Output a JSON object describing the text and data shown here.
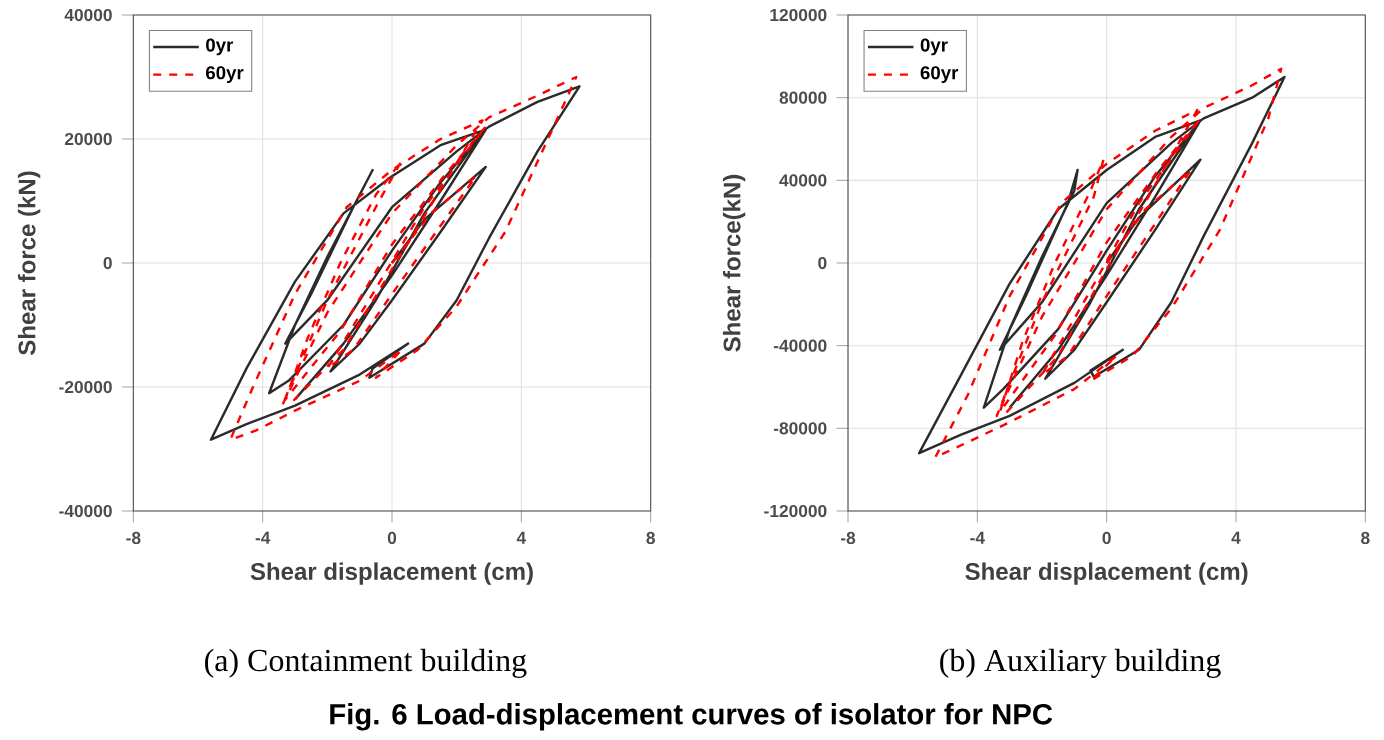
{
  "chart_data": [
    {
      "type": "line",
      "xlabel": "Shear displacement (cm)",
      "ylabel": "Shear force (kN)",
      "xlim": [
        -8,
        8
      ],
      "ylim": [
        -40000,
        40000
      ],
      "xticks": [
        -8,
        -4,
        0,
        4,
        8
      ],
      "yticks": [
        -40000,
        -20000,
        0,
        20000,
        40000
      ],
      "grid": true,
      "legend": "top left",
      "annotations": [
        "(a) Containment building",
        "Fig. 6 Load-displacement curves of isolator for NPC"
      ],
      "series": [
        {
          "name": "0yr",
          "color": "#2b2b2b",
          "line_style": "solid",
          "x": [
            0,
            1,
            2.9,
            1.5,
            0,
            -1,
            -1.9,
            -0.5,
            1,
            2.8,
            1.5,
            0,
            -1.5,
            -3.2,
            -3.8,
            -3,
            -2,
            -1,
            -0.6,
            -1.2,
            -2.5,
            -3.3,
            -2,
            0,
            2,
            3,
            4.5,
            5.8,
            4.5,
            3,
            2,
            1,
            -0.7,
            -0.6,
            0.5,
            -1,
            -3,
            -4.5,
            -5.6,
            -4.5,
            -3,
            -1.5,
            0,
            1.5,
            2.9,
            1.5,
            0,
            -1.5,
            -3
          ],
          "values": [
            0,
            7000,
            15500,
            5000,
            -6000,
            -13000,
            -17500,
            -6000,
            8000,
            21000,
            13000,
            2000,
            -10000,
            -19000,
            -21000,
            -10000,
            1000,
            11000,
            15000,
            9000,
            -5000,
            -13000,
            -6000,
            9000,
            18000,
            22000,
            26000,
            28500,
            18000,
            4000,
            -6000,
            -13000,
            -18500,
            -17000,
            -13000,
            -18000,
            -23000,
            -26000,
            -28500,
            -17000,
            -3000,
            8000,
            14000,
            19000,
            21500,
            10000,
            -2000,
            -13000,
            -22000
          ]
        },
        {
          "name": "60yr",
          "color": "#ff0000",
          "line_style": "dashed",
          "x": [
            0,
            1.2,
            2.6,
            1.5,
            0,
            -1.2,
            -2,
            -0.6,
            1,
            2.9,
            1.6,
            0,
            -1.6,
            -3.3,
            -2.6,
            -1.6,
            -0.5,
            0.3,
            -0.4,
            -2,
            -3.4,
            -2,
            0,
            2,
            3,
            4.5,
            5.7,
            5,
            3.5,
            2,
            0.8,
            -0.5,
            0.3,
            -1,
            -3,
            -4.2,
            -5,
            -4.3,
            -3,
            -1.4,
            0,
            1.5,
            2.8,
            1.4,
            0,
            -1.5,
            -3.2
          ],
          "values": [
            0,
            8000,
            14000,
            6000,
            -5000,
            -14000,
            -17000,
            -5000,
            9000,
            22000,
            14000,
            3000,
            -11000,
            -22000,
            -12000,
            0,
            11000,
            16500,
            10000,
            -6000,
            -23000,
            -8000,
            8000,
            19000,
            23500,
            27000,
            30000,
            22000,
            5000,
            -7000,
            -14000,
            -18500,
            -14000,
            -19000,
            -23800,
            -27000,
            -28500,
            -20000,
            -5000,
            9000,
            15000,
            20000,
            23000,
            11000,
            -1000,
            -14000,
            -23000
          ]
        }
      ]
    },
    {
      "type": "line",
      "xlabel": "Shear displacement (cm)",
      "ylabel": "Shear force(kN)",
      "xlim": [
        -8,
        8
      ],
      "ylim": [
        -120000,
        120000
      ],
      "xticks": [
        -8,
        -4,
        0,
        4,
        8
      ],
      "yticks": [
        -120000,
        -80000,
        -40000,
        0,
        40000,
        80000,
        120000
      ],
      "grid": true,
      "legend": "top left",
      "annotations": [
        "(b) Auxiliary building"
      ],
      "series": [
        {
          "name": "0yr",
          "color": "#2b2b2b",
          "line_style": "solid",
          "x": [
            0,
            1,
            2.9,
            1.5,
            0,
            -1,
            -1.9,
            -0.5,
            1,
            2.8,
            1.5,
            0,
            -1.5,
            -3.2,
            -3.8,
            -3,
            -2,
            -1,
            -0.9,
            -1.2,
            -2.5,
            -3.3,
            -2,
            0,
            2,
            3,
            4.5,
            5.5,
            4.5,
            3,
            2,
            1,
            -0.4,
            -0.5,
            0.5,
            -1,
            -3,
            -4.5,
            -5.8,
            -4.5,
            -3,
            -1.5,
            0,
            1.5,
            2.9,
            1.5,
            0,
            -1.5,
            -3
          ],
          "values": [
            0,
            22000,
            50000,
            16000,
            -19000,
            -42000,
            -56000,
            -19000,
            26000,
            67000,
            42000,
            6000,
            -32000,
            -61000,
            -70000,
            -32000,
            3000,
            35000,
            45000,
            29000,
            -16000,
            -42000,
            -19000,
            29000,
            58000,
            70000,
            80000,
            90000,
            58000,
            13000,
            -19000,
            -42000,
            -55000,
            -52000,
            -42000,
            -58000,
            -74000,
            -83000,
            -92000,
            -54000,
            -10000,
            26000,
            45000,
            61000,
            69000,
            32000,
            -6000,
            -42000,
            -70000
          ]
        },
        {
          "name": "60yr",
          "color": "#ff0000",
          "line_style": "dashed",
          "x": [
            0,
            1.2,
            2.6,
            1.5,
            0,
            -1.2,
            -2,
            -0.6,
            1,
            2.9,
            1.6,
            0,
            -1.6,
            -3.3,
            -2.6,
            -1.6,
            -0.5,
            -0.1,
            -0.4,
            -2,
            -3.4,
            -2,
            0,
            2,
            3,
            4.5,
            5.4,
            5,
            3.5,
            2,
            0.8,
            -0.5,
            0.3,
            -1,
            -3,
            -4.2,
            -5.3,
            -4.3,
            -3,
            -1.4,
            0,
            1.5,
            2.8,
            1.4,
            0,
            -1.5,
            -3.2
          ],
          "values": [
            0,
            26000,
            45000,
            19000,
            -16000,
            -45000,
            -54000,
            -16000,
            29000,
            70000,
            45000,
            10000,
            -35000,
            -72000,
            -38000,
            0,
            35000,
            50000,
            32000,
            -19000,
            -74000,
            -26000,
            26000,
            61000,
            75000,
            86000,
            94000,
            70000,
            16000,
            -22000,
            -45000,
            -57000,
            -45000,
            -61000,
            -77000,
            -86000,
            -94000,
            -64000,
            -16000,
            29000,
            48000,
            64000,
            74000,
            35000,
            -3000,
            -45000,
            -74000
          ]
        }
      ]
    }
  ]
}
